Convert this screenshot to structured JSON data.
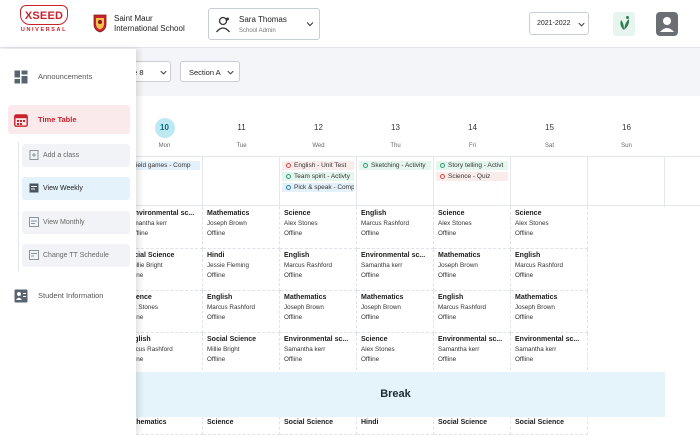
{
  "header": {
    "logo_text": "XSEED",
    "logo_sub": "UNIVERSAL",
    "school_name": "Saint Maur International School",
    "user_name": "Sara Thomas",
    "user_role": "School Admin",
    "year": "2021-2022",
    "colors": {
      "brand_red": "#c8232c",
      "leaf_green": "#2e7d4f"
    }
  },
  "filters": {
    "grade": "de 8",
    "section": "Section A"
  },
  "sidebar": {
    "items": [
      {
        "label": "Announcements",
        "icon": "grid-icon"
      },
      {
        "label": "Time Table",
        "icon": "calendar-icon"
      },
      {
        "label": "Student Information",
        "icon": "student-icon"
      }
    ],
    "subitems": [
      {
        "label": "Add a class",
        "icon": "add-doc-icon"
      },
      {
        "label": "View Weekly",
        "icon": "weekly-icon"
      },
      {
        "label": "View Monthly",
        "icon": "monthly-icon"
      },
      {
        "label": "Change TT Schedule",
        "icon": "schedule-icon"
      }
    ]
  },
  "timetable": {
    "days": [
      {
        "num": "10",
        "name": "Mon",
        "active": true
      },
      {
        "num": "11",
        "name": "Tue"
      },
      {
        "num": "12",
        "name": "Wed"
      },
      {
        "num": "13",
        "name": "Thu"
      },
      {
        "num": "14",
        "name": "Fri"
      },
      {
        "num": "15",
        "name": "Sat"
      },
      {
        "num": "16",
        "name": "Sun"
      }
    ],
    "events": [
      [
        {
          "text": "Field games - Comp",
          "color": "blue"
        }
      ],
      [],
      [
        {
          "text": "English - Unit Test",
          "color": "red"
        },
        {
          "text": "Team spirit - Activty",
          "color": "green"
        },
        {
          "text": "Pick & speak - Comp",
          "color": "blue"
        }
      ],
      [
        {
          "text": "Sketching - Activity",
          "color": "green"
        }
      ],
      [
        {
          "text": "Story telling - Activt",
          "color": "green"
        },
        {
          "text": "Science - Quiz",
          "color": "red"
        }
      ],
      [],
      []
    ],
    "break_label": "Break",
    "rows": [
      [
        {
          "subject": "Environmental sc...",
          "teacher": "amantha kerr",
          "mode": "Offline"
        },
        {
          "subject": "Mathematics",
          "teacher": "Joseph Brown",
          "mode": "Offline"
        },
        {
          "subject": "Science",
          "teacher": "Alex Stones",
          "mode": "Offline"
        },
        {
          "subject": "English",
          "teacher": "Marcus Rashford",
          "mode": "Offline"
        },
        {
          "subject": "Science",
          "teacher": "Alex Stones",
          "mode": "Offline"
        },
        {
          "subject": "Science",
          "teacher": "Alex Stones",
          "mode": "Offline"
        }
      ],
      [
        {
          "subject": "ocial Science",
          "teacher": "Millie Bright",
          "mode": "nline"
        },
        {
          "subject": "Hindi",
          "teacher": "Jessie Fleming",
          "mode": "Offline"
        },
        {
          "subject": "English",
          "teacher": "Marcus Rashford",
          "mode": "Offline"
        },
        {
          "subject": "Environmental sc...",
          "teacher": "Samantha kerr",
          "mode": "Offline"
        },
        {
          "subject": "Mathematics",
          "teacher": "Joseph Brown",
          "mode": "Offline"
        },
        {
          "subject": "English",
          "teacher": "Marcus Rashford",
          "mode": "Offline"
        }
      ],
      [
        {
          "subject": "cience",
          "teacher": "ex Stones",
          "mode": "nline"
        },
        {
          "subject": "English",
          "teacher": "Marcus Rashford",
          "mode": "Offline"
        },
        {
          "subject": "Mathematics",
          "teacher": "Joseph Brown",
          "mode": "Offline"
        },
        {
          "subject": "Mathematics",
          "teacher": "Joseph Brown",
          "mode": "Offline"
        },
        {
          "subject": "English",
          "teacher": "Marcus Rashford",
          "mode": "Offline"
        },
        {
          "subject": "Mathematics",
          "teacher": "Joseph Brown",
          "mode": "Offline"
        }
      ],
      [
        {
          "subject": "nglish",
          "teacher": "arcus Rashford",
          "mode": "nline"
        },
        {
          "subject": "Social Science",
          "teacher": "Millie Bright",
          "mode": "Offline"
        },
        {
          "subject": "Environmental sc...",
          "teacher": "Samantha kerr",
          "mode": "Offline"
        },
        {
          "subject": "Science",
          "teacher": "Alex Stones",
          "mode": "Offline"
        },
        {
          "subject": "Environmental sc...",
          "teacher": "Samantha kerr",
          "mode": "Offline"
        },
        {
          "subject": "Environmental sc...",
          "teacher": "Samantha kerr",
          "mode": "Offline"
        }
      ],
      [
        {
          "subject": "athematics",
          "teacher": "",
          "mode": ""
        },
        {
          "subject": "Science",
          "teacher": "",
          "mode": ""
        },
        {
          "subject": "Social Science",
          "teacher": "",
          "mode": ""
        },
        {
          "subject": "Hindi",
          "teacher": "",
          "mode": ""
        },
        {
          "subject": "Social Science",
          "teacher": "",
          "mode": ""
        },
        {
          "subject": "Social Science",
          "teacher": "",
          "mode": ""
        }
      ]
    ]
  }
}
